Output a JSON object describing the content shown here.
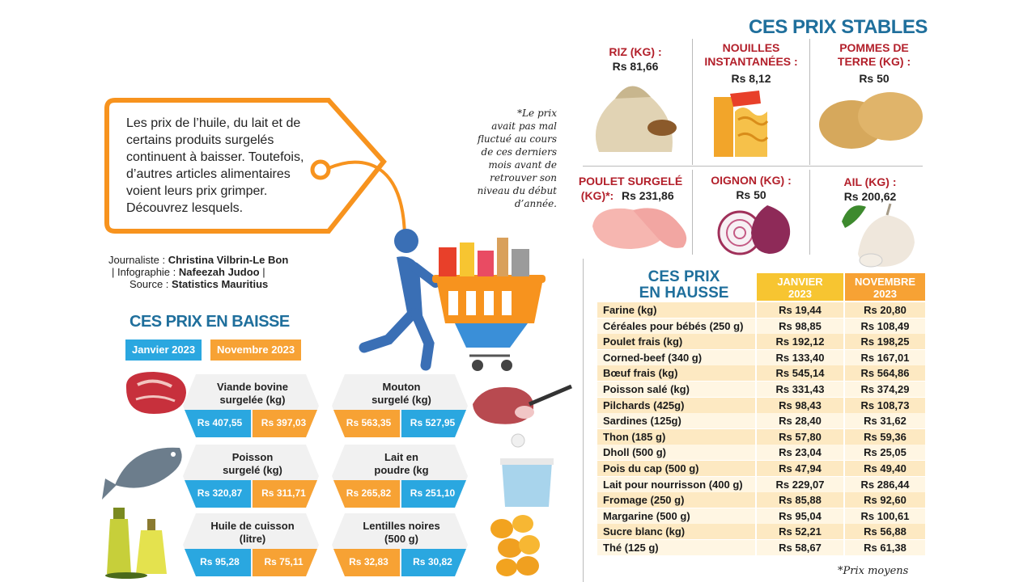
{
  "intro": {
    "lines": [
      "Les prix de l’huile, du lait et de",
      "certains produits surgelés",
      "continuent à baisser. Toutefois,",
      "d’autres articles alimentaires",
      "voient leurs prix grimper.",
      "Découvrez lesquels."
    ]
  },
  "credits": {
    "journalist_label": "Journaliste :",
    "journalist": "Christina Vilbrin-Le Bon",
    "infographic_label": "| Infographie :",
    "infographic": "Nafeezah Judoo",
    "infographic_sep": "|",
    "source_label": "Source :",
    "source": "Statistics Mauritius"
  },
  "note": {
    "lines": [
      "*Le prix",
      "avait pas mal",
      "fluctué au cours",
      "de ces derniers",
      "mois avant de",
      "retrouver son",
      "niveau du début",
      "d’année."
    ]
  },
  "baisse": {
    "title": "CES PRIX EN BAISSE",
    "legend_jan": "Janvier 2023",
    "legend_nov": "Novembre 2023",
    "items": [
      {
        "name1": "Viande bovine",
        "name2": "surgelée (kg)",
        "jan": "Rs 407,55",
        "nov": "Rs 397,03"
      },
      {
        "name1": "Mouton",
        "name2": "surgelé (kg)",
        "jan": "Rs 563,35",
        "nov": "Rs 527,95"
      },
      {
        "name1": "Poisson",
        "name2": "surgelé (kg)",
        "jan": "Rs 320,87",
        "nov": "Rs 311,71"
      },
      {
        "name1": "Lait en",
        "name2": "poudre (kg",
        "jan": "Rs 265,82",
        "nov": "Rs 251,10"
      },
      {
        "name1": "Huile de cuisson",
        "name2": "(litre)",
        "jan": "Rs 95,28",
        "nov": "Rs 75,11"
      },
      {
        "name1": "Lentilles noires",
        "name2": "(500 g)",
        "jan": "Rs 32,83",
        "nov": "Rs 30,82"
      }
    ]
  },
  "stables": {
    "title": "CES PRIX STABLES",
    "items": [
      {
        "name1": "RIZ (KG) :",
        "name2": "",
        "price": "Rs 81,66"
      },
      {
        "name1": "NOUILLES",
        "name2": "INSTANTANÉES :",
        "price": "Rs 8,12"
      },
      {
        "name1": "POMMES DE",
        "name2": "TERRE (KG) :",
        "price": "Rs 50"
      },
      {
        "name1": "POULET SURGELÉ",
        "name2": "(KG)*:",
        "price": "Rs 231,86"
      },
      {
        "name1": "OIGNON (KG) :",
        "name2": "",
        "price": "Rs 50"
      },
      {
        "name1": "AIL (KG) :",
        "name2": "",
        "price": "Rs 200,62"
      }
    ]
  },
  "hausse": {
    "title1": "CES PRIX",
    "title2": "EN HAUSSE",
    "col_jan1": "JANVIER",
    "col_jan2": "2023",
    "col_nov1": "NOVEMBRE",
    "col_nov2": "2023",
    "rows": [
      {
        "item": "Farine (kg)",
        "jan": "Rs 19,44",
        "nov": "Rs 20,80"
      },
      {
        "item": "Céréales pour bébés (250 g)",
        "jan": "Rs 98,85",
        "nov": "Rs 108,49"
      },
      {
        "item": "Poulet frais (kg)",
        "jan": "Rs 192,12",
        "nov": "Rs 198,25"
      },
      {
        "item": "Corned-beef (340 g)",
        "jan": "Rs 133,40",
        "nov": "Rs 167,01"
      },
      {
        "item": "Bœuf frais (kg)",
        "jan": "Rs 545,14",
        "nov": "Rs 564,86"
      },
      {
        "item": "Poisson salé (kg)",
        "jan": "Rs 331,43",
        "nov": "Rs 374,29"
      },
      {
        "item": "Pilchards (425g)",
        "jan": "Rs 98,43",
        "nov": "Rs 108,73"
      },
      {
        "item": "Sardines (125g)",
        "jan": "Rs 28,40",
        "nov": "Rs 31,62"
      },
      {
        "item": "Thon (185 g)",
        "jan": "Rs 57,80",
        "nov": "Rs 59,36"
      },
      {
        "item": "Dholl (500 g)",
        "jan": "Rs 23,04",
        "nov": "Rs 25,05"
      },
      {
        "item": "Pois du cap (500 g)",
        "jan": "Rs 47,94",
        "nov": "Rs 49,40"
      },
      {
        "item": "Lait pour nourrisson (400 g)",
        "jan": "Rs 229,07",
        "nov": "Rs 286,44"
      },
      {
        "item": "Fromage (250 g)",
        "jan": "Rs 85,88",
        "nov": "Rs 92,60"
      },
      {
        "item": "Margarine (500 g)",
        "jan": "Rs 95,04",
        "nov": "Rs 100,61"
      },
      {
        "item": "Sucre blanc (kg)",
        "jan": "Rs 52,21",
        "nov": "Rs 56,88"
      },
      {
        "item": "Thé (125 g)",
        "jan": "Rs 58,67",
        "nov": "Rs 61,38"
      }
    ]
  },
  "footnote": "*Prix moyens",
  "colors": {
    "blue": "#2aa7e0",
    "orange": "#f7a234",
    "teal_title": "#1f6f9c",
    "red_label": "#b3202b"
  },
  "icons": [
    "price-tag-icon",
    "shopper-cart-icon",
    "beef-icon",
    "fish-icon",
    "oil-bottles-icon",
    "mutton-icon",
    "milk-powder-icon",
    "lentils-icon",
    "rice-icon",
    "noodles-icon",
    "potato-icon",
    "chicken-icon",
    "onion-icon",
    "garlic-icon"
  ]
}
